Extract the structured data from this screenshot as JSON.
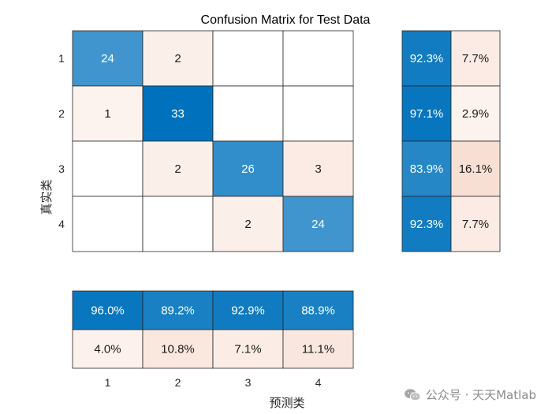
{
  "chart_data": {
    "type": "heatmap",
    "title": "Confusion Matrix for Test Data",
    "xlabel": "预测类",
    "ylabel": "真实类",
    "classes": [
      "1",
      "2",
      "3",
      "4"
    ],
    "matrix": [
      [
        24,
        2,
        0,
        0
      ],
      [
        1,
        33,
        0,
        0
      ],
      [
        0,
        2,
        26,
        3
      ],
      [
        0,
        0,
        2,
        24
      ]
    ],
    "row_summary": [
      [
        "92.3%",
        "7.7%"
      ],
      [
        "97.1%",
        "2.9%"
      ],
      [
        "83.9%",
        "16.1%"
      ],
      [
        "92.3%",
        "7.7%"
      ]
    ],
    "row_summary_values": [
      [
        92.3,
        7.7
      ],
      [
        97.1,
        2.9
      ],
      [
        83.9,
        16.1
      ],
      [
        92.3,
        7.7
      ]
    ],
    "column_summary": [
      [
        "96.0%",
        "89.2%",
        "92.9%",
        "88.9%"
      ],
      [
        "4.0%",
        "10.8%",
        "7.1%",
        "11.1%"
      ]
    ],
    "column_summary_values": [
      [
        96.0,
        89.2,
        92.9,
        88.9
      ],
      [
        4.0,
        10.8,
        7.1,
        11.1
      ]
    ],
    "colors": {
      "correct_high": "#0072BD",
      "incorrect_high": "#D95319"
    }
  },
  "watermark": {
    "text": "公众号 · 天天Matlab",
    "icon": "wechat-icon"
  }
}
